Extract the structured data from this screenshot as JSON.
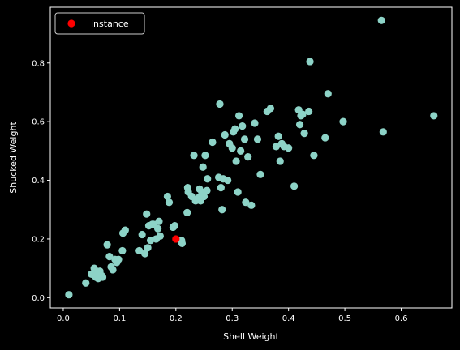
{
  "chart_data": {
    "type": "scatter",
    "xlabel": "Shell Weight",
    "ylabel": "Shucked Weight",
    "xlim": [
      -0.023,
      0.69
    ],
    "ylim": [
      -0.035,
      0.99
    ],
    "xticks": [
      0.0,
      0.1,
      0.2,
      0.3,
      0.4,
      0.5,
      0.6
    ],
    "xtick_labels": [
      "0.0",
      "0.1",
      "0.2",
      "0.3",
      "0.4",
      "0.5",
      "0.6"
    ],
    "yticks": [
      0.0,
      0.2,
      0.4,
      0.6,
      0.8
    ],
    "ytick_labels": [
      "0.0",
      "0.2",
      "0.4",
      "0.6",
      "0.8"
    ],
    "background": "#000000",
    "axis_color": "#ffffff",
    "grid": false,
    "legend_position": "upper left",
    "series": [
      {
        "color": "#8dd3c7",
        "points": [
          [
            0.01,
            0.01
          ],
          [
            0.04,
            0.05
          ],
          [
            0.05,
            0.08
          ],
          [
            0.055,
            0.1
          ],
          [
            0.058,
            0.07
          ],
          [
            0.06,
            0.08
          ],
          [
            0.062,
            0.065
          ],
          [
            0.065,
            0.09
          ],
          [
            0.068,
            0.075
          ],
          [
            0.07,
            0.07
          ],
          [
            0.078,
            0.18
          ],
          [
            0.082,
            0.14
          ],
          [
            0.085,
            0.105
          ],
          [
            0.088,
            0.095
          ],
          [
            0.092,
            0.13
          ],
          [
            0.095,
            0.12
          ],
          [
            0.098,
            0.13
          ],
          [
            0.105,
            0.16
          ],
          [
            0.106,
            0.22
          ],
          [
            0.11,
            0.23
          ],
          [
            0.135,
            0.16
          ],
          [
            0.14,
            0.215
          ],
          [
            0.145,
            0.15
          ],
          [
            0.148,
            0.285
          ],
          [
            0.15,
            0.17
          ],
          [
            0.152,
            0.245
          ],
          [
            0.155,
            0.195
          ],
          [
            0.158,
            0.25
          ],
          [
            0.16,
            0.25
          ],
          [
            0.165,
            0.2
          ],
          [
            0.168,
            0.235
          ],
          [
            0.17,
            0.26
          ],
          [
            0.172,
            0.21
          ],
          [
            0.185,
            0.345
          ],
          [
            0.188,
            0.325
          ],
          [
            0.195,
            0.24
          ],
          [
            0.198,
            0.245
          ],
          [
            0.21,
            0.195
          ],
          [
            0.211,
            0.185
          ],
          [
            0.22,
            0.29
          ],
          [
            0.221,
            0.375
          ],
          [
            0.222,
            0.36
          ],
          [
            0.228,
            0.345
          ],
          [
            0.232,
            0.485
          ],
          [
            0.235,
            0.33
          ],
          [
            0.24,
            0.34
          ],
          [
            0.242,
            0.37
          ],
          [
            0.244,
            0.33
          ],
          [
            0.246,
            0.36
          ],
          [
            0.248,
            0.445
          ],
          [
            0.25,
            0.345
          ],
          [
            0.252,
            0.485
          ],
          [
            0.255,
            0.365
          ],
          [
            0.256,
            0.405
          ],
          [
            0.265,
            0.53
          ],
          [
            0.276,
            0.41
          ],
          [
            0.278,
            0.66
          ],
          [
            0.28,
            0.375
          ],
          [
            0.282,
            0.3
          ],
          [
            0.284,
            0.405
          ],
          [
            0.287,
            0.555
          ],
          [
            0.292,
            0.4
          ],
          [
            0.295,
            0.525
          ],
          [
            0.3,
            0.51
          ],
          [
            0.302,
            0.565
          ],
          [
            0.305,
            0.575
          ],
          [
            0.307,
            0.465
          ],
          [
            0.31,
            0.36
          ],
          [
            0.312,
            0.62
          ],
          [
            0.315,
            0.5
          ],
          [
            0.318,
            0.585
          ],
          [
            0.322,
            0.54
          ],
          [
            0.324,
            0.325
          ],
          [
            0.328,
            0.48
          ],
          [
            0.334,
            0.315
          ],
          [
            0.34,
            0.595
          ],
          [
            0.345,
            0.54
          ],
          [
            0.35,
            0.42
          ],
          [
            0.362,
            0.635
          ],
          [
            0.368,
            0.645
          ],
          [
            0.378,
            0.515
          ],
          [
            0.382,
            0.55
          ],
          [
            0.385,
            0.465
          ],
          [
            0.388,
            0.525
          ],
          [
            0.392,
            0.515
          ],
          [
            0.4,
            0.51
          ],
          [
            0.41,
            0.38
          ],
          [
            0.418,
            0.64
          ],
          [
            0.42,
            0.59
          ],
          [
            0.422,
            0.62
          ],
          [
            0.425,
            0.625
          ],
          [
            0.428,
            0.56
          ],
          [
            0.436,
            0.635
          ],
          [
            0.438,
            0.805
          ],
          [
            0.445,
            0.485
          ],
          [
            0.465,
            0.545
          ],
          [
            0.47,
            0.695
          ],
          [
            0.497,
            0.6
          ],
          [
            0.565,
            0.945
          ],
          [
            0.568,
            0.565
          ],
          [
            0.658,
            0.62
          ]
        ]
      },
      {
        "name": "instance",
        "color": "#ff0000",
        "points": [
          [
            0.2,
            0.2
          ]
        ]
      }
    ]
  }
}
